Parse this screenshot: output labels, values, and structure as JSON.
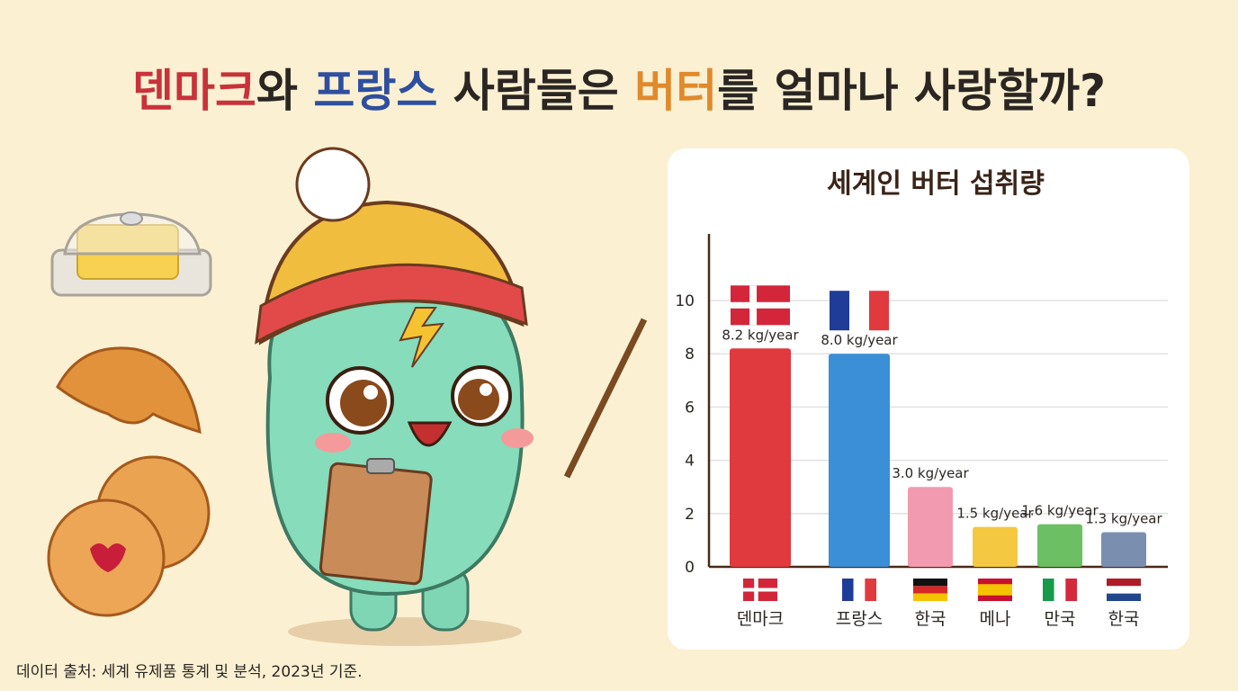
{
  "header": {
    "title_parts": [
      {
        "text": "덴마크",
        "color": "#c8323a"
      },
      {
        "text": "와 ",
        "color": "#2b2622"
      },
      {
        "text": "프랑스",
        "color": "#2f4f9e"
      },
      {
        "text": " 사람들은 ",
        "color": "#2b2622"
      },
      {
        "text": "버터",
        "color": "#e08a2c"
      },
      {
        "text": "를 얼마나 사랑할까?",
        "color": "#2b2622"
      }
    ]
  },
  "chart_data": {
    "type": "bar",
    "title": "세계인 버터 섭취량",
    "categories": [
      "덴마크",
      "프랑스",
      "한국",
      "메나",
      "만국",
      "한국"
    ],
    "values": [
      8.2,
      8.0,
      3.0,
      1.5,
      1.6,
      1.3
    ],
    "value_labels": [
      "8.2 kg/year",
      "8.0 kg/year",
      "3.0 kg/year",
      "1.5 kg/year",
      "1.6 kg/year",
      "1.3 kg/year"
    ],
    "colors": [
      "#e0393e",
      "#3a8fd6",
      "#f29bb0",
      "#f5c842",
      "#6cc063",
      "#7a8fb0"
    ],
    "ylim": [
      0,
      12.5
    ],
    "yticks": [
      0,
      2,
      4,
      6,
      8,
      10
    ],
    "grid": true
  },
  "footer": {
    "source": "데이터 출처: 세계 유제품 통계 및 분석, 2023년 기준."
  }
}
